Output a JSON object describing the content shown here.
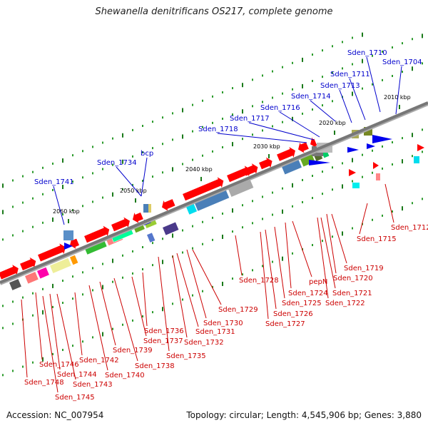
{
  "title": "Shewanella denitrificans OS217, complete genome",
  "footer": {
    "accession": "Accession: NC_007954",
    "summary": "Topology: circular; Length: 4,545,906 bp; Genes: 3,880"
  },
  "colors": {
    "label_above": "#0000cc",
    "label_below": "#cc0000",
    "backbone": "#777777"
  },
  "ticks": [
    "2010 kbp",
    "2020 kbp",
    "2030 kbp",
    "2040 kbp",
    "2050 kbp",
    "2060 kbp"
  ],
  "genes_above": [
    "Sden_1704",
    "Sden_1710",
    "Sden_1711",
    "Sden_1713",
    "Sden_1714",
    "Sden_1716",
    "Sden_1717",
    "Sden_1718",
    "bcp",
    "Sden_1734",
    "Sden_1741"
  ],
  "genes_below": [
    "Sden_1712",
    "Sden_1715",
    "Sden_1719",
    "Sden_1720",
    "Sden_1721",
    "Sden_1722",
    "pepN",
    "Sden_1724",
    "Sden_1725",
    "Sden_1726",
    "Sden_1727",
    "Sden_1728",
    "Sden_1729",
    "Sden_1730",
    "Sden_1731",
    "Sden_1732",
    "Sden_1735",
    "Sden_1736",
    "Sden_1737",
    "Sden_1738",
    "Sden_1739",
    "Sden_1740",
    "Sden_1742",
    "Sden_1743",
    "Sden_1744",
    "Sden_1745",
    "Sden_1746",
    "Sden_1748"
  ]
}
